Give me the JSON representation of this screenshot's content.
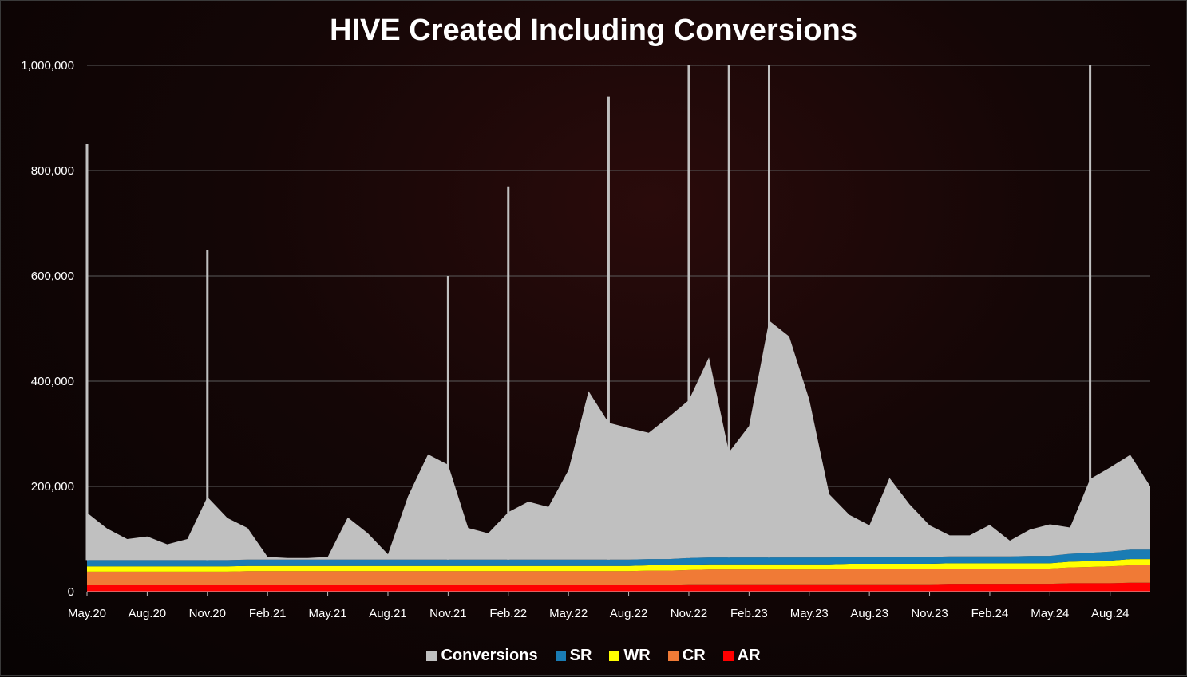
{
  "chart_data": {
    "type": "area",
    "title": "HIVE Created Including Conversions",
    "xlabel": "",
    "ylabel": "",
    "ylim": [
      0,
      1000000
    ],
    "yticks": [
      "0",
      "200,000",
      "400,000",
      "600,000",
      "800,000",
      "1,000,000"
    ],
    "x_tick_labels": [
      "May.20",
      "Aug.20",
      "Nov.20",
      "Feb.21",
      "May.21",
      "Aug.21",
      "Nov.21",
      "Feb.22",
      "May.22",
      "Aug.22",
      "Nov.22",
      "Feb.23",
      "May.23",
      "Aug.23",
      "Nov.23",
      "Feb.24",
      "May.24",
      "Aug.24"
    ],
    "x": [
      "May.20",
      "Jun.20",
      "Jul.20",
      "Aug.20",
      "Sep.20",
      "Oct.20",
      "Nov.20",
      "Dec.20",
      "Jan.21",
      "Feb.21",
      "Mar.21",
      "Apr.21",
      "May.21",
      "Jun.21",
      "Jul.21",
      "Aug.21",
      "Sep.21",
      "Oct.21",
      "Nov.21",
      "Dec.21",
      "Jan.22",
      "Feb.22",
      "Mar.22",
      "Apr.22",
      "May.22",
      "Jun.22",
      "Jul.22",
      "Aug.22",
      "Sep.22",
      "Oct.22",
      "Nov.22",
      "Dec.22",
      "Jan.23",
      "Feb.23",
      "Mar.23",
      "Apr.23",
      "May.23",
      "Jun.23",
      "Jul.23",
      "Aug.23",
      "Sep.23",
      "Oct.23",
      "Nov.23",
      "Dec.23",
      "Jan.24",
      "Feb.24",
      "Mar.24",
      "Apr.24",
      "May.24",
      "Jun.24",
      "Jul.24",
      "Aug.24",
      "Sep.24",
      "Oct.24"
    ],
    "stacked": true,
    "series": [
      {
        "name": "AR",
        "color": "#ff0000",
        "values": [
          13000,
          13000,
          13000,
          13000,
          13000,
          13000,
          13000,
          13000,
          13000,
          13000,
          13000,
          13000,
          13000,
          13000,
          13000,
          13000,
          13000,
          13000,
          13000,
          13000,
          13000,
          13000,
          13000,
          13000,
          13000,
          13000,
          13000,
          13000,
          13000,
          13000,
          14000,
          14000,
          14000,
          14000,
          14000,
          14000,
          14000,
          14000,
          14000,
          14000,
          14000,
          14000,
          14000,
          15000,
          15000,
          15000,
          15000,
          15000,
          15000,
          16000,
          16000,
          16000,
          17000,
          17000
        ]
      },
      {
        "name": "CR",
        "color": "#f07a36",
        "values": [
          25000,
          25000,
          25000,
          25000,
          25000,
          25000,
          25000,
          25000,
          26000,
          26000,
          26000,
          26000,
          26000,
          26000,
          26000,
          26000,
          26000,
          26000,
          26000,
          26000,
          26000,
          26000,
          26000,
          26000,
          26000,
          26000,
          26000,
          26000,
          27000,
          27000,
          27000,
          28000,
          28000,
          28000,
          28000,
          28000,
          28000,
          28000,
          29000,
          29000,
          29000,
          29000,
          29000,
          29000,
          29000,
          29000,
          29000,
          29000,
          29000,
          30000,
          31000,
          32000,
          33000,
          33000
        ]
      },
      {
        "name": "WR",
        "color": "#ffff00",
        "values": [
          10000,
          10000,
          10000,
          10000,
          10000,
          10000,
          10000,
          10000,
          10000,
          10000,
          10000,
          10000,
          10000,
          10000,
          10000,
          10000,
          10000,
          10000,
          10000,
          10000,
          10000,
          10000,
          10000,
          10000,
          10000,
          10000,
          10000,
          10000,
          10000,
          10000,
          10000,
          10000,
          10000,
          10000,
          10000,
          10000,
          10000,
          10000,
          10000,
          10000,
          10000,
          10000,
          10000,
          10000,
          10000,
          10000,
          10000,
          10000,
          10000,
          11000,
          11000,
          11000,
          12000,
          12000
        ]
      },
      {
        "name": "SR",
        "color": "#1a7cb4",
        "values": [
          12000,
          12000,
          12000,
          12000,
          12000,
          12000,
          12000,
          12000,
          12000,
          12000,
          12000,
          12000,
          12000,
          12000,
          12000,
          12000,
          12000,
          12000,
          12000,
          12000,
          12000,
          12000,
          12000,
          12000,
          12000,
          12000,
          12000,
          12000,
          12000,
          12000,
          13000,
          13000,
          13000,
          13000,
          13000,
          13000,
          13000,
          13000,
          13000,
          13000,
          13000,
          13000,
          13000,
          13000,
          13000,
          13000,
          13000,
          14000,
          14000,
          15000,
          16000,
          17000,
          18000,
          18000
        ]
      },
      {
        "name": "Conversions",
        "color": "#c0c0c0",
        "values": [
          90000,
          60000,
          40000,
          45000,
          30000,
          40000,
          120000,
          80000,
          60000,
          5000,
          3000,
          3000,
          5000,
          80000,
          50000,
          10000,
          120000,
          200000,
          180000,
          60000,
          50000,
          90000,
          110000,
          100000,
          170000,
          320000,
          260000,
          250000,
          240000,
          270000,
          300000,
          380000,
          200000,
          250000,
          450000,
          420000,
          300000,
          120000,
          80000,
          60000,
          150000,
          100000,
          60000,
          40000,
          40000,
          60000,
          30000,
          50000,
          60000,
          50000,
          140000,
          160000,
          180000,
          120000
        ]
      }
    ],
    "peaks": [
      {
        "x": "May.20",
        "value": 850000
      },
      {
        "x": "Nov.20",
        "value": 650000
      },
      {
        "x": "Nov.21",
        "value": 600000
      },
      {
        "x": "Feb.22",
        "value": 770000
      },
      {
        "x": "Jul.22",
        "value": 940000
      },
      {
        "x": "Nov.22",
        "value": 1000000
      },
      {
        "x": "Jan.23",
        "value": 1000000
      },
      {
        "x": "Mar.23",
        "value": 1000000
      },
      {
        "x": "Jul.24",
        "value": 1000000
      }
    ],
    "legend": [
      "Conversions",
      "SR",
      "WR",
      "CR",
      "AR"
    ],
    "legend_position": "bottom",
    "grid": true
  }
}
